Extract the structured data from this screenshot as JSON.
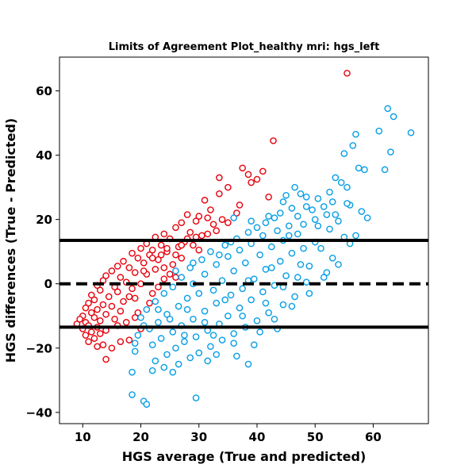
{
  "chart_data": {
    "type": "scatter",
    "title": "Limits of Agreement Plot_healthy mri: hgs_left",
    "xlabel": "HGS average (True and predicted)",
    "ylabel": "HGS differences (True - Predicted)",
    "xlim": [
      6,
      69.5
    ],
    "ylim": [
      -43.5,
      70.5
    ],
    "xticks": [
      10,
      20,
      30,
      40,
      50,
      60
    ],
    "yticks": [
      -40,
      -20,
      0,
      20,
      40,
      60
    ],
    "xtick_labels": [
      "10",
      "20",
      "30",
      "40",
      "50",
      "60"
    ],
    "ytick_labels": [
      "−40",
      "−20",
      "0",
      "20",
      "40",
      "60"
    ],
    "grid": false,
    "legend": null,
    "reference_lines": [
      {
        "y": 13.5,
        "style": "solid",
        "color": "#000000"
      },
      {
        "y": 0,
        "style": "dashed",
        "color": "#000000"
      },
      {
        "y": -13.5,
        "style": "solid",
        "color": "#000000"
      }
    ],
    "series": [
      {
        "color": "#e8000b",
        "marker": "hollow-circle",
        "points": [
          [
            55.5,
            65.5
          ],
          [
            42.8,
            44.5
          ],
          [
            37.5,
            36
          ],
          [
            41,
            35
          ],
          [
            38.5,
            34
          ],
          [
            33.5,
            33
          ],
          [
            40,
            32.5
          ],
          [
            39,
            31.5
          ],
          [
            35,
            30
          ],
          [
            42,
            27
          ],
          [
            31,
            26
          ],
          [
            37,
            24.5
          ],
          [
            36.5,
            22
          ],
          [
            28,
            21.5
          ],
          [
            30,
            21
          ],
          [
            31.5,
            20.5
          ],
          [
            34,
            20
          ],
          [
            29.5,
            19.5
          ],
          [
            27,
            19
          ],
          [
            32.5,
            18.5
          ],
          [
            26,
            17.5
          ],
          [
            28.5,
            16
          ],
          [
            24,
            15.5
          ],
          [
            30.5,
            15
          ],
          [
            22.5,
            14.5
          ],
          [
            25,
            14
          ],
          [
            27.5,
            13
          ],
          [
            21,
            12.5
          ],
          [
            23.5,
            12
          ],
          [
            26.5,
            11.5
          ],
          [
            20,
            11
          ],
          [
            22,
            10.5
          ],
          [
            24.5,
            10
          ],
          [
            18.5,
            9.5
          ],
          [
            21.5,
            9
          ],
          [
            19.5,
            8
          ],
          [
            23,
            7.5
          ],
          [
            17,
            7
          ],
          [
            20.5,
            6.5
          ],
          [
            25.5,
            6
          ],
          [
            16,
            5.5
          ],
          [
            18,
            5
          ],
          [
            22.5,
            4.5
          ],
          [
            15,
            4
          ],
          [
            19,
            3.5
          ],
          [
            21,
            3
          ],
          [
            14,
            2.5
          ],
          [
            16.5,
            2
          ],
          [
            24,
            1.5
          ],
          [
            13.5,
            1
          ],
          [
            17.5,
            0.5
          ],
          [
            20,
            0
          ],
          [
            12.5,
            -0.5
          ],
          [
            15.5,
            -1
          ],
          [
            18.5,
            -1.5
          ],
          [
            13,
            -2
          ],
          [
            16,
            -2.5
          ],
          [
            22,
            -3
          ],
          [
            11.5,
            -3.5
          ],
          [
            14.5,
            -4
          ],
          [
            19,
            -4.5
          ],
          [
            12,
            -5
          ],
          [
            17,
            -5.5
          ],
          [
            11,
            -6
          ],
          [
            13.5,
            -6.5
          ],
          [
            15,
            -7
          ],
          [
            10.5,
            -7.5
          ],
          [
            12.5,
            -8
          ],
          [
            16.5,
            -8.5
          ],
          [
            11.5,
            -9
          ],
          [
            14,
            -9.5
          ],
          [
            10,
            -10
          ],
          [
            12,
            -10.5
          ],
          [
            9.5,
            -11
          ],
          [
            13,
            -11.5
          ],
          [
            10.5,
            -12
          ],
          [
            11,
            -13
          ],
          [
            12.5,
            -13.5
          ],
          [
            9,
            -12.5
          ],
          [
            10,
            -14
          ],
          [
            11.5,
            -15
          ],
          [
            13,
            -15.5
          ],
          [
            10.5,
            -16
          ],
          [
            12,
            -17
          ],
          [
            11,
            -18
          ],
          [
            13.5,
            -19
          ],
          [
            15,
            -20
          ],
          [
            12.5,
            -19.5
          ],
          [
            14,
            -23.5
          ],
          [
            16.5,
            -18
          ],
          [
            18,
            -17.5
          ],
          [
            28,
            14
          ],
          [
            26,
            9
          ],
          [
            29,
            12
          ],
          [
            30,
            10.5
          ],
          [
            27,
            8
          ],
          [
            25,
            3
          ],
          [
            23,
            -1
          ],
          [
            21.5,
            -6
          ],
          [
            19.5,
            -9
          ],
          [
            17.5,
            -12
          ],
          [
            24,
            5
          ],
          [
            26,
            2
          ],
          [
            18,
            -4
          ],
          [
            16,
            -13
          ],
          [
            20,
            -14
          ],
          [
            14,
            -14.5
          ],
          [
            15.5,
            -11
          ],
          [
            19,
            -10.5
          ],
          [
            27,
            12
          ],
          [
            29.5,
            14.5
          ],
          [
            31.5,
            15.5
          ],
          [
            33,
            16.5
          ],
          [
            35,
            19
          ],
          [
            32,
            23
          ],
          [
            33.5,
            28
          ],
          [
            22,
            8
          ],
          [
            20.5,
            4
          ],
          [
            24.5,
            11
          ],
          [
            23.5,
            9
          ]
        ]
      },
      {
        "color": "#069ee5",
        "marker": "hollow-circle",
        "points": [
          [
            62.5,
            54.5
          ],
          [
            63.5,
            52
          ],
          [
            66.5,
            47
          ],
          [
            61,
            47.5
          ],
          [
            57,
            46.5
          ],
          [
            56.5,
            43
          ],
          [
            63,
            41
          ],
          [
            55,
            40.5
          ],
          [
            57.5,
            36
          ],
          [
            58.5,
            35.5
          ],
          [
            62,
            35.5
          ],
          [
            53.5,
            33
          ],
          [
            54.5,
            31.5
          ],
          [
            55.5,
            30
          ],
          [
            52.5,
            28.5
          ],
          [
            47.5,
            28
          ],
          [
            45,
            27.5
          ],
          [
            48.5,
            27
          ],
          [
            50.5,
            26.5
          ],
          [
            53,
            25.5
          ],
          [
            56,
            24.5
          ],
          [
            51.5,
            24
          ],
          [
            46,
            23.5
          ],
          [
            49.5,
            23
          ],
          [
            58,
            22.5
          ],
          [
            44,
            22
          ],
          [
            52,
            21.5
          ],
          [
            47,
            21
          ],
          [
            43,
            20.5
          ],
          [
            50,
            20
          ],
          [
            54,
            19.5
          ],
          [
            41.5,
            19
          ],
          [
            48,
            18.5
          ],
          [
            45.5,
            18
          ],
          [
            40,
            17.5
          ],
          [
            52.5,
            17
          ],
          [
            43.5,
            16.5
          ],
          [
            38.5,
            16
          ],
          [
            47,
            15.5
          ],
          [
            41,
            15
          ],
          [
            55,
            14.5
          ],
          [
            36.5,
            14
          ],
          [
            44.5,
            13.5
          ],
          [
            50,
            13
          ],
          [
            39,
            12.5
          ],
          [
            34.5,
            12
          ],
          [
            42.5,
            11.5
          ],
          [
            48,
            11
          ],
          [
            37,
            10.5
          ],
          [
            32,
            10
          ],
          [
            46,
            9.5
          ],
          [
            40.5,
            9
          ],
          [
            35,
            8.5
          ],
          [
            53,
            8
          ],
          [
            30.5,
            7.5
          ],
          [
            44,
            7
          ],
          [
            38,
            6.5
          ],
          [
            33,
            6
          ],
          [
            49,
            5.5
          ],
          [
            28.5,
            5
          ],
          [
            41.5,
            4.5
          ],
          [
            36,
            4
          ],
          [
            52,
            3.5
          ],
          [
            31,
            3
          ],
          [
            45,
            2.5
          ],
          [
            27,
            2
          ],
          [
            39.5,
            1.5
          ],
          [
            34,
            1
          ],
          [
            48.5,
            0.5
          ],
          [
            29,
            0
          ],
          [
            43,
            -0.5
          ],
          [
            25.5,
            -1
          ],
          [
            37.5,
            -1.5
          ],
          [
            32.5,
            -2
          ],
          [
            41,
            -2.5
          ],
          [
            24,
            -3
          ],
          [
            35.5,
            -3.5
          ],
          [
            46.5,
            -4
          ],
          [
            28,
            -4.5
          ],
          [
            39,
            -5
          ],
          [
            22.5,
            -5.5
          ],
          [
            33,
            -6
          ],
          [
            44.5,
            -6.5
          ],
          [
            26.5,
            -7
          ],
          [
            37,
            -7.5
          ],
          [
            21,
            -8
          ],
          [
            31,
            -8.5
          ],
          [
            42,
            -9
          ],
          [
            24.5,
            -9.5
          ],
          [
            35,
            -10
          ],
          [
            20,
            -10.5
          ],
          [
            29,
            -11
          ],
          [
            40,
            -11.5
          ],
          [
            23,
            -12
          ],
          [
            33.5,
            -12.5
          ],
          [
            27,
            -13
          ],
          [
            38,
            -13.5
          ],
          [
            21.5,
            -14
          ],
          [
            31.5,
            -14.5
          ],
          [
            25.5,
            -15
          ],
          [
            36,
            -15.5
          ],
          [
            19.5,
            -16
          ],
          [
            29.5,
            -16.5
          ],
          [
            23.5,
            -17
          ],
          [
            34,
            -17.5
          ],
          [
            27.5,
            -18
          ],
          [
            22,
            -19
          ],
          [
            32,
            -19.5
          ],
          [
            26,
            -20
          ],
          [
            19,
            -21
          ],
          [
            30,
            -21.5
          ],
          [
            24.5,
            -22
          ],
          [
            28.5,
            -23
          ],
          [
            22.5,
            -24
          ],
          [
            26.5,
            -25
          ],
          [
            24,
            -26
          ],
          [
            22,
            -27
          ],
          [
            18.5,
            -27.5
          ],
          [
            25.5,
            -27.5
          ],
          [
            38.5,
            -25
          ],
          [
            31.5,
            -24
          ],
          [
            18.5,
            -34.5
          ],
          [
            20.5,
            -36.5
          ],
          [
            21,
            -37.5
          ],
          [
            29.5,
            -35.5
          ],
          [
            36,
            -18.5
          ],
          [
            33,
            -22
          ],
          [
            40.5,
            -15
          ],
          [
            43,
            -11
          ],
          [
            46,
            -7
          ],
          [
            49,
            -3
          ],
          [
            51.5,
            2
          ],
          [
            54,
            6
          ],
          [
            57,
            15
          ],
          [
            59,
            20.5
          ],
          [
            51,
            11
          ],
          [
            47.5,
            6
          ],
          [
            56,
            12.5
          ],
          [
            45.5,
            15
          ],
          [
            42,
            21
          ],
          [
            39,
            19.5
          ],
          [
            36,
            20.5
          ],
          [
            50.5,
            18
          ],
          [
            53.5,
            21.5
          ],
          [
            55.5,
            25
          ],
          [
            48.5,
            24
          ],
          [
            46.5,
            30
          ],
          [
            44.5,
            25.5
          ],
          [
            28,
            -8
          ],
          [
            30,
            -3
          ],
          [
            26,
            4
          ],
          [
            33.5,
            9
          ],
          [
            35.5,
            13
          ],
          [
            38.5,
            1
          ],
          [
            41.5,
            -6
          ],
          [
            44.5,
            -1
          ],
          [
            47,
            2
          ],
          [
            42.5,
            5
          ],
          [
            37.5,
            -10
          ],
          [
            34.5,
            -5
          ],
          [
            31,
            -12
          ],
          [
            27.5,
            -16
          ],
          [
            23,
            -8
          ],
          [
            20.5,
            -13
          ],
          [
            19,
            -18.5
          ],
          [
            25,
            -11
          ],
          [
            29,
            6.5
          ],
          [
            32.5,
            -16
          ],
          [
            36.5,
            -22.5
          ],
          [
            39.5,
            -19
          ],
          [
            43.5,
            -14
          ]
        ]
      }
    ]
  }
}
